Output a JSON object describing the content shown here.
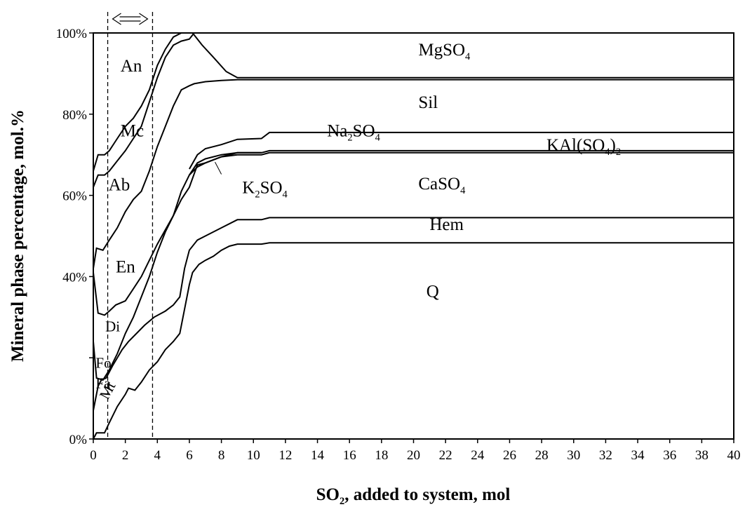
{
  "chart_data": {
    "type": "area",
    "xlabel": "SO",
    "xlabel_sub": "2",
    "xlabel_rest": ", added to system, mol",
    "ylabel": "Mineral phase percentage, mol.%",
    "xlim": [
      0,
      40
    ],
    "ylim": [
      0,
      100
    ],
    "x_ticks": [
      0,
      2,
      4,
      6,
      8,
      10,
      12,
      14,
      16,
      18,
      20,
      22,
      24,
      26,
      28,
      30,
      32,
      34,
      36,
      38,
      40
    ],
    "y_ticks": [
      0,
      20,
      40,
      60,
      80,
      100
    ],
    "y_tick_labels": [
      "0%",
      "",
      "40%",
      "60%",
      "80%",
      "100%"
    ],
    "window": {
      "x_start": 0.9,
      "x_end": 3.7
    },
    "boundaries": [
      {
        "points": [
          [
            0,
            0
          ],
          [
            0.2,
            1.5
          ],
          [
            0.7,
            1.5
          ],
          [
            1.0,
            4
          ],
          [
            1.5,
            8
          ],
          [
            2.0,
            11
          ],
          [
            2.2,
            12.5
          ],
          [
            2.6,
            12
          ],
          [
            3.0,
            14
          ],
          [
            3.5,
            17
          ],
          [
            4.0,
            19
          ],
          [
            4.5,
            22
          ],
          [
            5.0,
            24
          ],
          [
            5.4,
            26
          ],
          [
            5.8,
            34
          ],
          [
            6.0,
            38
          ],
          [
            6.2,
            41
          ],
          [
            6.6,
            43
          ],
          [
            7.0,
            44
          ],
          [
            7.5,
            45
          ],
          [
            8.0,
            46.5
          ],
          [
            8.5,
            47.5
          ],
          [
            9.0,
            48
          ],
          [
            10.5,
            48
          ],
          [
            11,
            48.3
          ],
          [
            40,
            48.3
          ]
        ]
      },
      {
        "points": [
          [
            0,
            7
          ],
          [
            0.3,
            13
          ],
          [
            0.5,
            14.5
          ],
          [
            0.8,
            15
          ],
          [
            1.2,
            18
          ],
          [
            1.8,
            22
          ],
          [
            2.2,
            24
          ],
          [
            2.7,
            26
          ],
          [
            3.2,
            28
          ],
          [
            3.8,
            30
          ],
          [
            4.5,
            31.5
          ],
          [
            5.0,
            33
          ],
          [
            5.4,
            35
          ],
          [
            5.7,
            42
          ],
          [
            6.0,
            46.5
          ],
          [
            6.5,
            49
          ],
          [
            7.0,
            50
          ],
          [
            8.0,
            52
          ],
          [
            9.0,
            54
          ],
          [
            10.5,
            54
          ],
          [
            11,
            54.5
          ],
          [
            40,
            54.5
          ]
        ]
      },
      {
        "points": [
          [
            0,
            24
          ],
          [
            0.2,
            15
          ],
          [
            0.6,
            14.5
          ],
          [
            1.0,
            17
          ],
          [
            1.5,
            21
          ],
          [
            2.0,
            26
          ],
          [
            2.5,
            30
          ],
          [
            3.0,
            35
          ],
          [
            3.5,
            40
          ],
          [
            4.0,
            46
          ],
          [
            4.5,
            51
          ],
          [
            5.0,
            55
          ],
          [
            5.5,
            61
          ],
          [
            6.0,
            65
          ],
          [
            6.5,
            67
          ],
          [
            7.0,
            68
          ],
          [
            8.0,
            69.5
          ],
          [
            9.0,
            70.5
          ],
          [
            10.5,
            70.5
          ],
          [
            11,
            71
          ],
          [
            40,
            71
          ]
        ]
      },
      {
        "points": [
          [
            0,
            41
          ],
          [
            0.3,
            31
          ],
          [
            0.7,
            30.5
          ],
          [
            1.0,
            31.5
          ],
          [
            1.4,
            33
          ],
          [
            2.0,
            34
          ],
          [
            2.5,
            37
          ],
          [
            3.0,
            40
          ],
          [
            3.5,
            44
          ],
          [
            4.0,
            48
          ],
          [
            4.5,
            51.5
          ],
          [
            5.0,
            55
          ],
          [
            5.5,
            59
          ],
          [
            6.0,
            62
          ],
          [
            6.5,
            67.5
          ],
          [
            7.0,
            68
          ],
          [
            8.0,
            69.5
          ],
          [
            9.0,
            70
          ],
          [
            10.5,
            70
          ],
          [
            11,
            70.5
          ],
          [
            40,
            70.5
          ]
        ]
      },
      {
        "points": [
          [
            0,
            42
          ],
          [
            0.2,
            47
          ],
          [
            0.6,
            46.5
          ],
          [
            1.0,
            49
          ],
          [
            1.5,
            52
          ],
          [
            2.0,
            56
          ],
          [
            2.5,
            59
          ],
          [
            3.0,
            61
          ],
          [
            3.5,
            66
          ],
          [
            4.0,
            72
          ],
          [
            4.5,
            77
          ],
          [
            5.0,
            82
          ],
          [
            5.5,
            86
          ],
          [
            6.0,
            87
          ],
          [
            6.3,
            87.5
          ],
          [
            7.0,
            88
          ],
          [
            8.0,
            88.3
          ],
          [
            9.0,
            88.5
          ],
          [
            40,
            88.5
          ]
        ]
      },
      {
        "points": [
          [
            0,
            62
          ],
          [
            0.3,
            65
          ],
          [
            0.7,
            65
          ],
          [
            1.0,
            66
          ],
          [
            1.5,
            68.5
          ],
          [
            2.0,
            71
          ],
          [
            2.5,
            74
          ],
          [
            3.0,
            77
          ],
          [
            3.5,
            83
          ],
          [
            4.0,
            89
          ],
          [
            4.5,
            94
          ],
          [
            5.0,
            97
          ],
          [
            5.5,
            98
          ],
          [
            6.0,
            98.5
          ],
          [
            6.3,
            100
          ]
        ]
      },
      {
        "points": [
          [
            0,
            66
          ],
          [
            0.3,
            70
          ],
          [
            0.7,
            70
          ],
          [
            1.0,
            71
          ],
          [
            1.5,
            74
          ],
          [
            2.0,
            77
          ],
          [
            2.5,
            79
          ],
          [
            3.0,
            82
          ],
          [
            3.5,
            86
          ],
          [
            4.0,
            92
          ],
          [
            4.5,
            96
          ],
          [
            5.0,
            99
          ],
          [
            5.5,
            100
          ]
        ]
      },
      {
        "points": [
          [
            6.2,
            100
          ],
          [
            6.8,
            97
          ],
          [
            7.5,
            94
          ],
          [
            8.3,
            90.5
          ],
          [
            9.0,
            89
          ],
          [
            40,
            89
          ]
        ]
      },
      {
        "points": [
          [
            6.0,
            65
          ],
          [
            6.5,
            68
          ],
          [
            7.0,
            69
          ],
          [
            8.0,
            70
          ],
          [
            9.0,
            70.5
          ],
          [
            10.5,
            70.5
          ]
        ]
      },
      {
        "points": [
          [
            6.0,
            66.5
          ],
          [
            6.5,
            70
          ],
          [
            7.0,
            71.5
          ],
          [
            8.0,
            72.5
          ],
          [
            9.0,
            73.8
          ],
          [
            10.5,
            74
          ],
          [
            11,
            75.5
          ],
          [
            40,
            75.5
          ]
        ]
      }
    ],
    "leaders": [
      {
        "points": [
          [
            7.6,
            68.2
          ],
          [
            8.0,
            65.2
          ]
        ]
      }
    ],
    "labels": [
      {
        "text": "MgSO",
        "sub": "4",
        "x": 20.3,
        "y": 94.5,
        "size": "lg"
      },
      {
        "text": "Sil",
        "x": 20.3,
        "y": 81.5,
        "size": "lg"
      },
      {
        "text": "Na",
        "sub": "2",
        "text2": "SO",
        "sub2": "4",
        "x": 14.6,
        "y": 74.5,
        "size": "lg"
      },
      {
        "text": "KAl(SO",
        "sub": "4",
        "text2": ")",
        "sub2": "2",
        "x": 28.3,
        "y": 71.0,
        "size": "lg"
      },
      {
        "text": "CaSO",
        "sub": "4",
        "x": 20.3,
        "y": 61.5,
        "size": "lg"
      },
      {
        "text": "K",
        "sub": "2",
        "text2": "SO",
        "sub2": "4",
        "x": 9.3,
        "y": 60.5,
        "size": "lg"
      },
      {
        "text": "Hem",
        "x": 21.0,
        "y": 51.5,
        "size": "lg"
      },
      {
        "text": "Q",
        "x": 20.8,
        "y": 35.0,
        "size": "lg"
      },
      {
        "text": "An",
        "x": 1.7,
        "y": 90.5,
        "size": "lg"
      },
      {
        "text": "Mc",
        "x": 1.7,
        "y": 74.5,
        "size": "lg"
      },
      {
        "text": "Ab",
        "x": 0.95,
        "y": 61.2,
        "size": "lg"
      },
      {
        "text": "En",
        "x": 1.4,
        "y": 41.0,
        "size": "lg"
      },
      {
        "text": "Di",
        "x": 0.75,
        "y": 26.5,
        "size": "sm"
      },
      {
        "text": "Fo",
        "x": 0.15,
        "y": 17.5,
        "size": "sm"
      },
      {
        "text": "Fa",
        "x": 0.15,
        "y": 12.5,
        "size": "sm"
      },
      {
        "text": "Mt",
        "x": 0.9,
        "y": 9.5,
        "size": "sm",
        "rotate": -62
      }
    ]
  }
}
